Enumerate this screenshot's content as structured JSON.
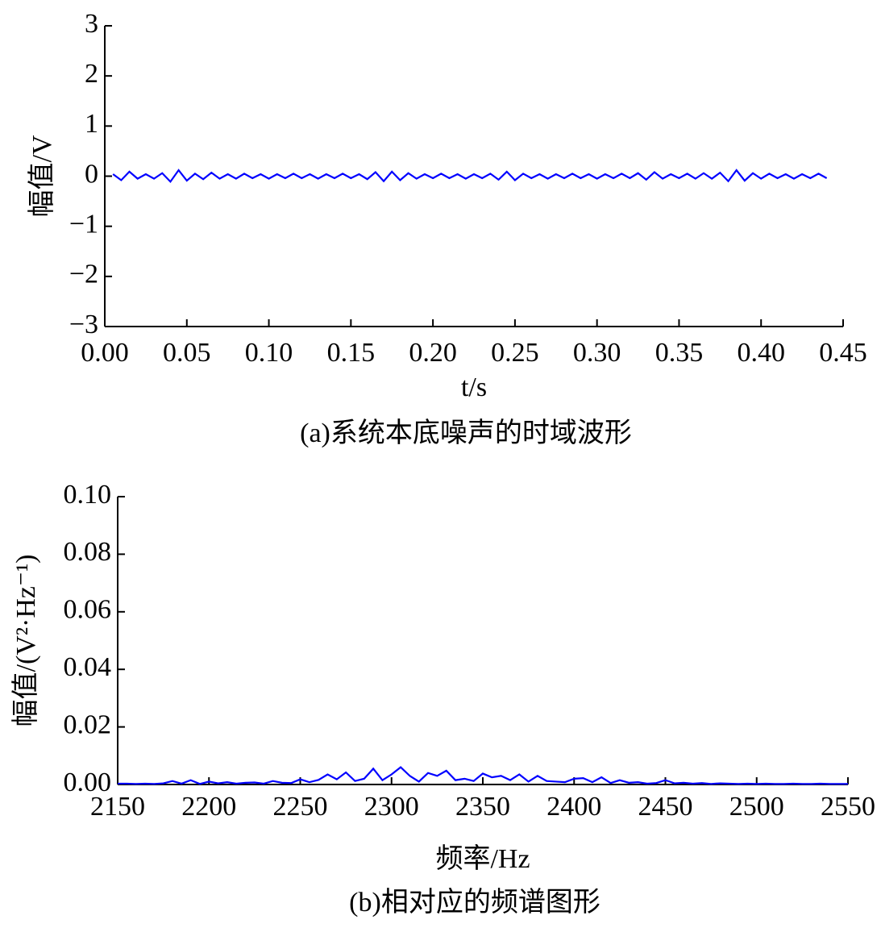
{
  "chart_data": [
    {
      "type": "line",
      "title": "(a)系统本底噪声的时域波形",
      "x_label": "t/s",
      "y_label": "幅值/V",
      "xlim": [
        0,
        0.45
      ],
      "ylim": [
        -3,
        3
      ],
      "xticks": [
        {
          "value": 0,
          "label": "0.00"
        },
        {
          "value": 0.05,
          "label": "0.05"
        },
        {
          "value": 0.1,
          "label": "0.10"
        },
        {
          "value": 0.15,
          "label": "0.15"
        },
        {
          "value": 0.2,
          "label": "0.20"
        },
        {
          "value": 0.25,
          "label": "0.25"
        },
        {
          "value": 0.3,
          "label": "0.30"
        },
        {
          "value": 0.35,
          "label": "0.35"
        },
        {
          "value": 0.4,
          "label": "0.40"
        },
        {
          "value": 0.45,
          "label": "0.45"
        }
      ],
      "yticks": [
        {
          "value": -3,
          "label": "−3"
        },
        {
          "value": -2,
          "label": "−2"
        },
        {
          "value": -1,
          "label": "−1"
        },
        0,
        1,
        2,
        3
      ],
      "grid": false,
      "series": [
        {
          "color": "#0000ff",
          "x": [
            0.005,
            0.01,
            0.015,
            0.02,
            0.025,
            0.03,
            0.035,
            0.04,
            0.045,
            0.05,
            0.055,
            0.06,
            0.065,
            0.07,
            0.075,
            0.08,
            0.085,
            0.09,
            0.095,
            0.1,
            0.105,
            0.11,
            0.115,
            0.12,
            0.125,
            0.13,
            0.135,
            0.14,
            0.145,
            0.15,
            0.155,
            0.16,
            0.165,
            0.17,
            0.175,
            0.18,
            0.185,
            0.19,
            0.195,
            0.2,
            0.205,
            0.21,
            0.215,
            0.22,
            0.225,
            0.23,
            0.235,
            0.24,
            0.245,
            0.25,
            0.255,
            0.26,
            0.265,
            0.27,
            0.275,
            0.28,
            0.285,
            0.29,
            0.295,
            0.3,
            0.305,
            0.31,
            0.315,
            0.32,
            0.325,
            0.33,
            0.335,
            0.34,
            0.345,
            0.35,
            0.355,
            0.36,
            0.365,
            0.37,
            0.375,
            0.38,
            0.385,
            0.39,
            0.395,
            0.4,
            0.405,
            0.41,
            0.415,
            0.42,
            0.425,
            0.43,
            0.435,
            0.44
          ],
          "values": [
            0.04,
            -0.08,
            0.09,
            -0.05,
            0.04,
            -0.05,
            0.06,
            -0.11,
            0.12,
            -0.09,
            0.05,
            -0.06,
            0.07,
            -0.05,
            0.04,
            -0.05,
            0.05,
            -0.04,
            0.04,
            -0.05,
            0.04,
            -0.04,
            0.05,
            -0.04,
            0.04,
            -0.05,
            0.04,
            -0.04,
            0.05,
            -0.04,
            0.04,
            -0.06,
            0.08,
            -0.1,
            0.09,
            -0.08,
            0.06,
            -0.05,
            0.04,
            -0.04,
            0.05,
            -0.04,
            0.04,
            -0.05,
            0.04,
            -0.04,
            0.05,
            -0.07,
            0.09,
            -0.08,
            0.05,
            -0.04,
            0.04,
            -0.05,
            0.04,
            -0.04,
            0.05,
            -0.04,
            0.04,
            -0.05,
            0.04,
            -0.04,
            0.05,
            -0.04,
            0.06,
            -0.07,
            0.08,
            -0.05,
            0.04,
            -0.04,
            0.05,
            -0.05,
            0.06,
            -0.05,
            0.07,
            -0.1,
            0.12,
            -0.09,
            0.06,
            -0.05,
            0.05,
            -0.04,
            0.04,
            -0.05,
            0.04,
            -0.04,
            0.05,
            -0.04
          ]
        }
      ]
    },
    {
      "type": "line",
      "title": "(b)相对应的频谱图形",
      "x_label": "频率/Hz",
      "y_label": "幅值/(V²·Hz⁻¹)",
      "xlim": [
        2150,
        2550
      ],
      "ylim": [
        0,
        0.1
      ],
      "xticks": [
        2150,
        2200,
        2250,
        2300,
        2350,
        2400,
        2450,
        2500,
        2550
      ],
      "yticks": [
        {
          "value": 0,
          "label": "0.00"
        },
        {
          "value": 0.02,
          "label": "0.02"
        },
        {
          "value": 0.04,
          "label": "0.04"
        },
        {
          "value": 0.06,
          "label": "0.06"
        },
        {
          "value": 0.08,
          "label": "0.08"
        },
        {
          "value": 0.1,
          "label": "0.10"
        }
      ],
      "grid": false,
      "series": [
        {
          "color": "#0000ff",
          "x": [
            2150,
            2155,
            2160,
            2165,
            2170,
            2175,
            2180,
            2185,
            2190,
            2195,
            2200,
            2205,
            2210,
            2215,
            2220,
            2225,
            2230,
            2235,
            2240,
            2245,
            2250,
            2255,
            2260,
            2265,
            2270,
            2275,
            2280,
            2285,
            2290,
            2295,
            2300,
            2305,
            2310,
            2315,
            2320,
            2325,
            2330,
            2335,
            2340,
            2345,
            2350,
            2355,
            2360,
            2365,
            2370,
            2375,
            2380,
            2385,
            2390,
            2395,
            2400,
            2405,
            2410,
            2415,
            2420,
            2425,
            2430,
            2435,
            2440,
            2445,
            2450,
            2455,
            2460,
            2465,
            2470,
            2475,
            2480,
            2485,
            2490,
            2495,
            2500,
            2505,
            2510,
            2515,
            2520,
            2525,
            2530,
            2535,
            2540,
            2545,
            2550
          ],
          "values": [
            0.0003,
            0.0003,
            0.0002,
            0.0003,
            0.0002,
            0.0004,
            0.0012,
            0.0003,
            0.0015,
            0.0002,
            0.001,
            0.0004,
            0.0008,
            0.0003,
            0.0006,
            0.0007,
            0.0003,
            0.0012,
            0.0006,
            0.0005,
            0.0018,
            0.0008,
            0.0016,
            0.0035,
            0.0018,
            0.0042,
            0.0012,
            0.002,
            0.0055,
            0.0015,
            0.0035,
            0.006,
            0.003,
            0.001,
            0.004,
            0.003,
            0.0048,
            0.0015,
            0.002,
            0.0012,
            0.0038,
            0.0025,
            0.003,
            0.0015,
            0.0035,
            0.001,
            0.003,
            0.0012,
            0.001,
            0.0008,
            0.002,
            0.0022,
            0.0008,
            0.0025,
            0.0005,
            0.0015,
            0.0006,
            0.0008,
            0.0003,
            0.0005,
            0.0015,
            0.0004,
            0.0006,
            0.0003,
            0.0005,
            0.0002,
            0.0004,
            0.0003,
            0.0002,
            0.0003,
            0.0002,
            0.0003,
            0.0002,
            0.0002,
            0.0003,
            0.0002,
            0.0002,
            0.0003,
            0.0002,
            0.0002,
            0.0002
          ]
        }
      ]
    }
  ]
}
